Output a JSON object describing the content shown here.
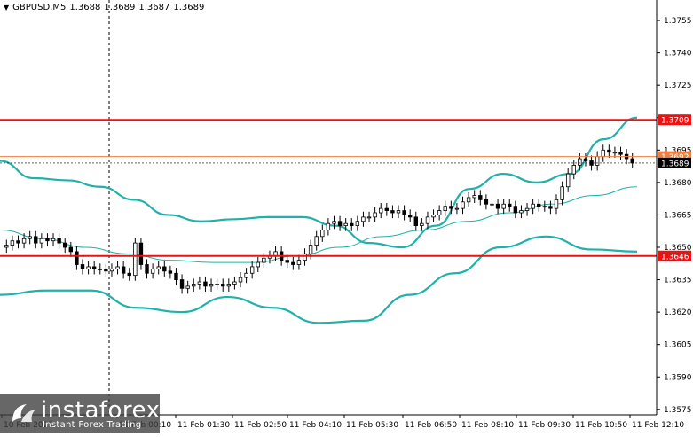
{
  "header": {
    "symbol": "GBPUSD,M5",
    "open": "1.3688",
    "high": "1.3689",
    "low": "1.3687",
    "close": "1.3689"
  },
  "levels": {
    "resistance": {
      "label": "1.3709",
      "color": "#ee1111"
    },
    "support": {
      "label": "1.3646",
      "color": "#ee1111"
    },
    "bid": {
      "label": "1.3689",
      "color": "#000000"
    },
    "ask": {
      "label": "1.3692",
      "color": "#f08040"
    }
  },
  "y_axis_ticks": [
    "1.3755",
    "1.3740",
    "1.3725",
    "1.3710",
    "1.3695",
    "1.3680",
    "1.3665",
    "1.3650",
    "1.3635",
    "1.3620",
    "1.3605",
    "1.3590",
    "1.3575"
  ],
  "x_axis_ticks": [
    "10 Feb 2025",
    "11 Feb 00:10",
    "11 Feb 01:30",
    "11 Feb 02:50",
    "11 Feb 04:10",
    "11 Feb 05:30",
    "11 Feb 06:50",
    "11 Feb 08:10",
    "11 Feb 09:30",
    "11 Feb 10:50",
    "11 Feb 12:10"
  ],
  "logo": {
    "brand": "instaforex",
    "tagline": "Instant Forex Trading"
  },
  "colors": {
    "bollinger": "#20b2aa",
    "ma": "#20b2aa",
    "candle": "#000000",
    "grid": "none",
    "separator": "#000000"
  },
  "chart_data": {
    "type": "candlestick",
    "ylim": [
      1.357,
      1.3762
    ],
    "close": [
      1.3651,
      1.3653,
      1.3652,
      1.3654,
      1.3655,
      1.3652,
      1.3654,
      1.3653,
      1.3654,
      1.3652,
      1.365,
      1.3648,
      1.3642,
      1.364,
      1.3641,
      1.364,
      1.364,
      1.3639,
      1.364,
      1.3641,
      1.3638,
      1.3637,
      1.3652,
      1.3642,
      1.3638,
      1.364,
      1.3641,
      1.3639,
      1.3638,
      1.3635,
      1.3631,
      1.3632,
      1.3633,
      1.3634,
      1.3632,
      1.3633,
      1.3633,
      1.3632,
      1.3633,
      1.3634,
      1.3636,
      1.3638,
      1.3641,
      1.3643,
      1.3645,
      1.3646,
      1.3648,
      1.3644,
      1.3643,
      1.3642,
      1.3644,
      1.3647,
      1.3651,
      1.3655,
      1.3658,
      1.3661,
      1.3662,
      1.366,
      1.3661,
      1.366,
      1.3662,
      1.3664,
      1.3664,
      1.3666,
      1.3668,
      1.3667,
      1.3666,
      1.3667,
      1.3665,
      1.3664,
      1.366,
      1.3661,
      1.3664,
      1.3665,
      1.3667,
      1.3669,
      1.3668,
      1.3668,
      1.3671,
      1.3673,
      1.3674,
      1.3672,
      1.367,
      1.367,
      1.3668,
      1.367,
      1.3669,
      1.3666,
      1.3667,
      1.3668,
      1.367,
      1.3669,
      1.3669,
      1.3668,
      1.3672,
      1.3678,
      1.3684,
      1.3688,
      1.3691,
      1.369,
      1.3688,
      1.3692,
      1.3695,
      1.3694,
      1.3694,
      1.3693,
      1.3691,
      1.3689
    ],
    "bollinger_upper": [
      1.369,
      1.3682,
      1.3681,
      1.3678,
      1.3672,
      1.3665,
      1.3662,
      1.3663,
      1.3664,
      1.3664,
      1.366,
      1.3652,
      1.365,
      1.366,
      1.3677,
      1.3684,
      1.368,
      1.3684,
      1.37,
      1.371
    ],
    "bollinger_middle": [
      1.3658,
      1.3654,
      1.365,
      1.3647,
      1.3644,
      1.3643,
      1.3643,
      1.3646,
      1.365,
      1.3655,
      1.3658,
      1.3662,
      1.3666,
      1.367,
      1.3674,
      1.3678
    ],
    "bollinger_lower": [
      1.3628,
      1.363,
      1.363,
      1.3622,
      1.362,
      1.3627,
      1.3622,
      1.3615,
      1.3616,
      1.3628,
      1.3638,
      1.365,
      1.3655,
      1.3649,
      1.3648
    ]
  }
}
